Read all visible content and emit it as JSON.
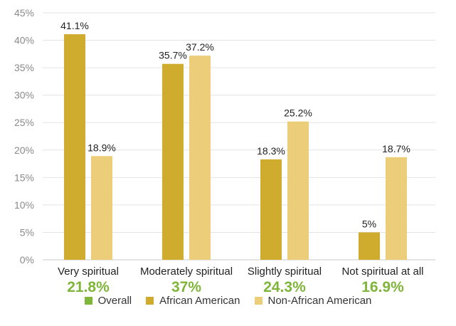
{
  "chart_data": {
    "type": "bar",
    "categories": [
      "Very spiritual",
      "Moderately spiritual",
      "Slightly spiritual",
      "Not spiritual at all"
    ],
    "series": [
      {
        "name": "African American",
        "color": "#cfac2e",
        "values": [
          41.1,
          35.7,
          18.3,
          5
        ],
        "labels": [
          "41.1%",
          "35.7%",
          "18.3%",
          "5%"
        ]
      },
      {
        "name": "Non-African American",
        "color": "#ebcd7a",
        "values": [
          18.9,
          37.2,
          25.2,
          18.7
        ],
        "labels": [
          "18.9%",
          "37.2%",
          "25.2%",
          "18.7%"
        ]
      }
    ],
    "overall": {
      "name": "Overall",
      "color": "#7fb539",
      "values": [
        21.8,
        37,
        24.3,
        16.9
      ],
      "labels": [
        "21.8%",
        "37%",
        "24.3%",
        "16.9%"
      ]
    },
    "y_ticks": [
      "0%",
      "5%",
      "10%",
      "15%",
      "20%",
      "25%",
      "30%",
      "35%",
      "40%",
      "45%"
    ],
    "ylim": [
      0,
      45
    ],
    "grid": true,
    "legend_position": "bottom"
  }
}
